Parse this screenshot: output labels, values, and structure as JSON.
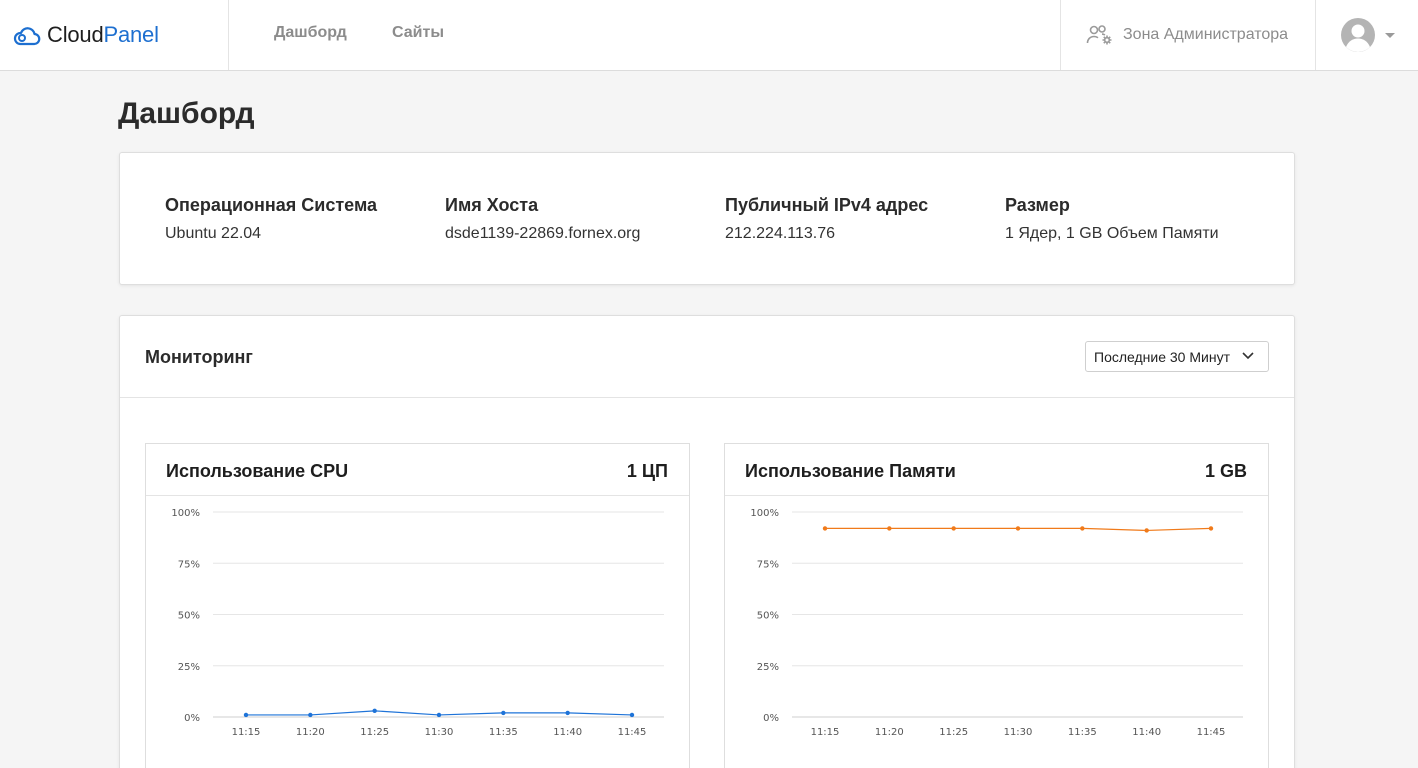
{
  "header": {
    "brand_part1": "Cloud",
    "brand_part2": "Panel",
    "nav": [
      "Дашборд",
      "Сайты"
    ],
    "admin_label": "Зона Администратора"
  },
  "page": {
    "title": "Дашборд"
  },
  "info": [
    {
      "label": "Операционная Система",
      "value": "Ubuntu 22.04"
    },
    {
      "label": "Имя Хоста",
      "value": "dsde1139-22869.fornex.org"
    },
    {
      "label": "Публичный IPv4 адрес",
      "value": "212.224.113.76"
    },
    {
      "label": "Размер",
      "value": "1 Ядер, 1 GB Объем Памяти"
    }
  ],
  "monitoring": {
    "title": "Мониторинг",
    "range_selected": "Последние 30 Минут"
  },
  "chart_data": [
    {
      "type": "line",
      "title": "Использование CPU",
      "capacity": "1 ЦП",
      "x": [
        "11:15",
        "11:20",
        "11:25",
        "11:30",
        "11:35",
        "11:40",
        "11:45"
      ],
      "y_ticks": [
        "100%",
        "75%",
        "50%",
        "25%",
        "0%"
      ],
      "ylim": [
        0,
        100
      ],
      "values": [
        1,
        1,
        3,
        1,
        2,
        2,
        1
      ],
      "color": "#1e73d8",
      "grid": true
    },
    {
      "type": "line",
      "title": "Использование Памяти",
      "capacity": "1 GB",
      "x": [
        "11:15",
        "11:20",
        "11:25",
        "11:30",
        "11:35",
        "11:40",
        "11:45"
      ],
      "y_ticks": [
        "100%",
        "75%",
        "50%",
        "25%",
        "0%"
      ],
      "ylim": [
        0,
        100
      ],
      "values": [
        92,
        92,
        92,
        92,
        92,
        91,
        92
      ],
      "color": "#f07a1a",
      "grid": true
    }
  ]
}
